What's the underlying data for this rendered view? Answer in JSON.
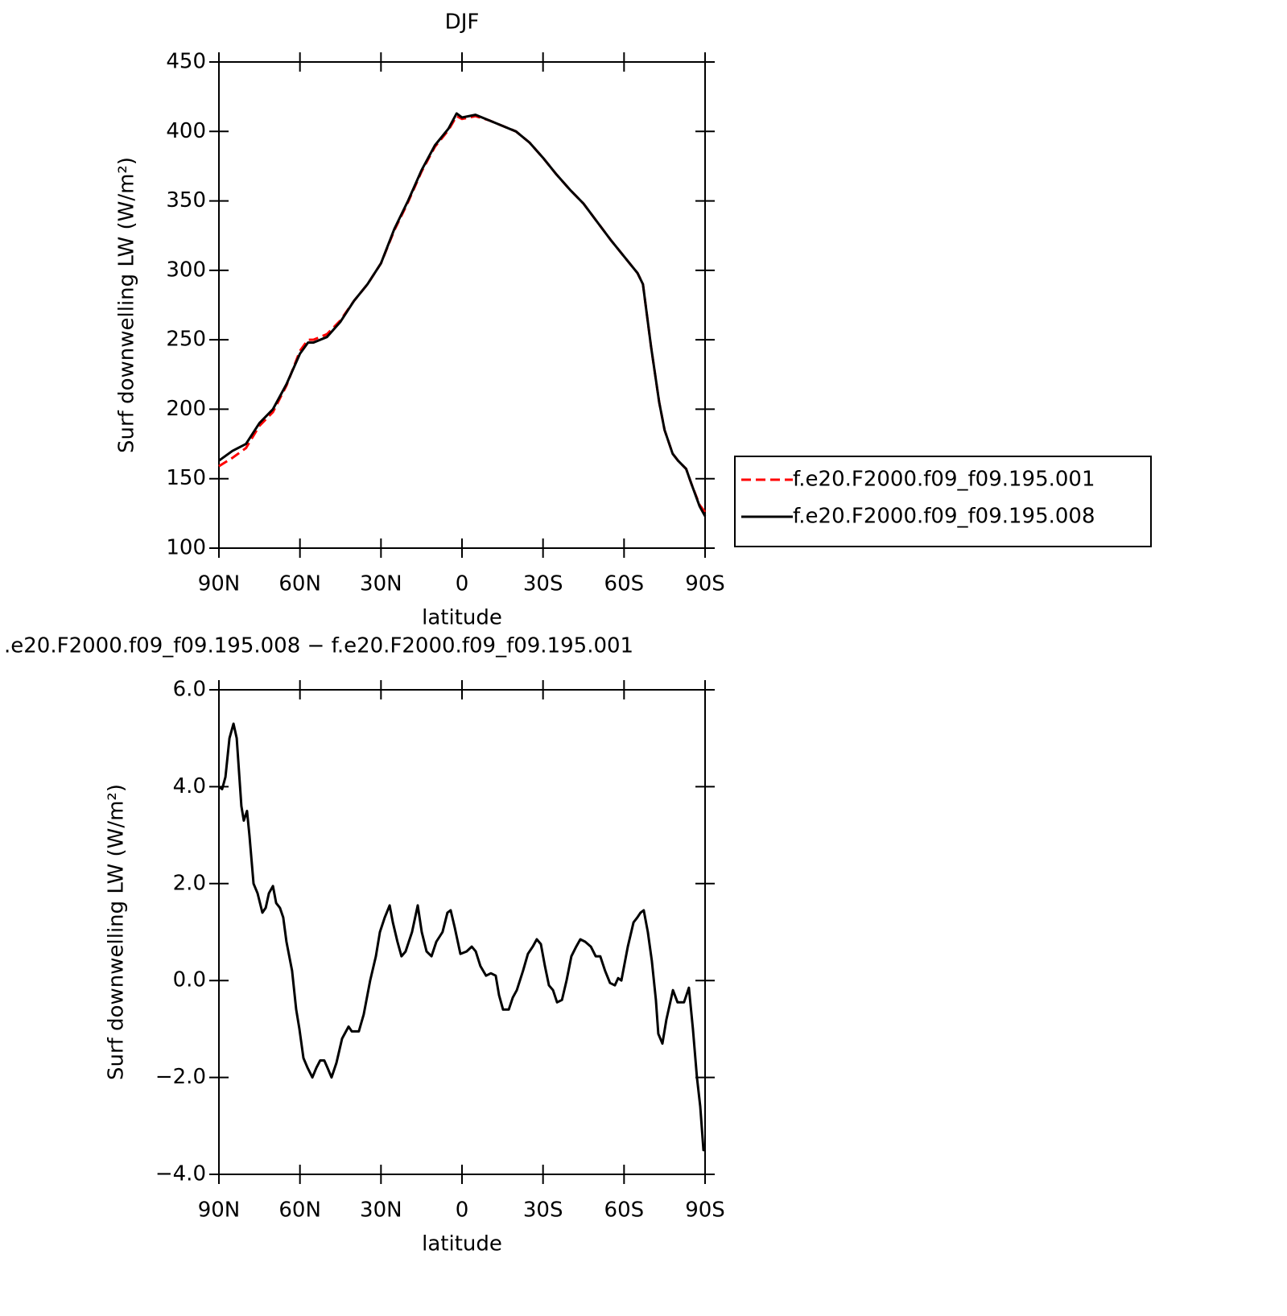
{
  "chart_data": [
    {
      "type": "line",
      "title": "DJF",
      "xlabel": "latitude",
      "ylabel": "Surf downwelling LW (W/m²)",
      "x": [
        90,
        85,
        80,
        75,
        70,
        65,
        60,
        57,
        55,
        50,
        45,
        40,
        35,
        30,
        25,
        20,
        15,
        10,
        5,
        2,
        0,
        -5,
        -10,
        -15,
        -20,
        -25,
        -30,
        -35,
        -40,
        -45,
        -50,
        -55,
        -60,
        -65,
        -67,
        -70,
        -73,
        -75,
        -78,
        -80,
        -83,
        -85,
        -88,
        -90
      ],
      "series": [
        {
          "name": "f.e20.F2000.f09_f09.195.001",
          "color": "#ff0000",
          "style": "dashed",
          "values": [
            159,
            165,
            172,
            188,
            198,
            217,
            242,
            250,
            250,
            254,
            264,
            278,
            290,
            305,
            329,
            349,
            371,
            389,
            401,
            411,
            409,
            411,
            408,
            404,
            400,
            392,
            381,
            369,
            358,
            348,
            335,
            322,
            310,
            298,
            290,
            245,
            205,
            185,
            168,
            163,
            157,
            146,
            131,
            126
          ]
        },
        {
          "name": "f.e20.F2000.f09_f09.195.008",
          "color": "#000000",
          "style": "solid",
          "values": [
            163,
            170,
            175,
            190,
            200,
            218,
            240,
            248,
            248,
            252,
            263,
            278,
            290,
            305,
            330,
            350,
            372,
            390,
            402,
            413,
            410,
            412,
            408,
            404,
            400,
            392,
            381,
            369,
            358,
            348,
            335,
            322,
            310,
            298,
            290,
            245,
            205,
            185,
            168,
            163,
            157,
            146,
            130,
            123
          ]
        }
      ],
      "xlim": [
        90,
        -90
      ],
      "xticks": [
        {
          "value": 90,
          "label": "90N"
        },
        {
          "value": 60,
          "label": "60N"
        },
        {
          "value": 30,
          "label": "30N"
        },
        0,
        {
          "value": -30,
          "label": "30S"
        },
        {
          "value": -60,
          "label": "60S"
        },
        {
          "value": -90,
          "label": "90S"
        }
      ],
      "ylim": [
        100,
        450
      ],
      "yticks": [
        100,
        150,
        200,
        250,
        300,
        350,
        400,
        450
      ],
      "legend": "right"
    },
    {
      "type": "line",
      "title": ".e20.F2000.f09_f09.195.008 − f.e20.F2000.f09_f09.195.001",
      "xlabel": "latitude",
      "ylabel": "Surf downwelling LW (W/m²)",
      "x": [
        90,
        88.8,
        87.6,
        86.1,
        84.6,
        83.4,
        81.7,
        80.8,
        79.6,
        78.7,
        77.2,
        75.7,
        73.9,
        72.7,
        71.5,
        70,
        68.8,
        67.4,
        66.2,
        65,
        62.9,
        61.4,
        60.2,
        58.7,
        57.2,
        55.4,
        53.9,
        52.5,
        51,
        49.8,
        48.3,
        46.5,
        44.4,
        42,
        40.8,
        38.2,
        36.4,
        34,
        31.9,
        30.4,
        28.6,
        26.8,
        25.6,
        23.9,
        22.4,
        20.9,
        18.5,
        16.4,
        14.9,
        13.1,
        11.3,
        9.5,
        7.2,
        5.4,
        4.2,
        2.7,
        0.6,
        -1.7,
        -3.6,
        -5.1,
        -6.8,
        -8.9,
        -10.7,
        -12.5,
        -13.7,
        -15.2,
        -17.3,
        -18.8,
        -20.3,
        -22.6,
        -24.4,
        -26.2,
        -27.7,
        -29.2,
        -30.7,
        -32.2,
        -33.7,
        -35.2,
        -37,
        -38.7,
        -40.5,
        -42.3,
        -43.8,
        -45.6,
        -47.7,
        -49.5,
        -51.2,
        -53,
        -54.8,
        -56.6,
        -57.8,
        -59,
        -61.4,
        -63.5,
        -64.9,
        -66.1,
        -67.3,
        -68.8,
        -70.3,
        -71.8,
        -72.7,
        -74.2,
        -75.7,
        -78.1,
        -79.8,
        -82.2,
        -84,
        -85.5,
        -87,
        -88.2,
        -89.4,
        -90
      ],
      "series": [
        {
          "name": null,
          "color": "#000000",
          "style": "solid",
          "values": [
            4.0,
            3.95,
            4.2,
            5.0,
            5.3,
            5.0,
            3.6,
            3.3,
            3.5,
            3.0,
            2.0,
            1.8,
            1.4,
            1.5,
            1.8,
            1.95,
            1.6,
            1.5,
            1.3,
            0.8,
            0.2,
            -0.6,
            -1.0,
            -1.6,
            -1.8,
            -2.0,
            -1.8,
            -1.65,
            -1.65,
            -1.8,
            -2.0,
            -1.7,
            -1.2,
            -0.95,
            -1.05,
            -1.05,
            -0.7,
            0.0,
            0.5,
            1.0,
            1.3,
            1.55,
            1.2,
            0.8,
            0.5,
            0.6,
            1.0,
            1.55,
            1.0,
            0.6,
            0.5,
            0.8,
            1.0,
            1.4,
            1.45,
            1.1,
            0.55,
            0.6,
            0.7,
            0.6,
            0.3,
            0.1,
            0.15,
            0.1,
            -0.3,
            -0.6,
            -0.6,
            -0.35,
            -0.2,
            0.2,
            0.55,
            0.7,
            0.85,
            0.75,
            0.3,
            -0.1,
            -0.2,
            -0.45,
            -0.4,
            0.0,
            0.5,
            0.7,
            0.85,
            0.8,
            0.7,
            0.5,
            0.5,
            0.2,
            -0.05,
            -0.1,
            0.05,
            0.0,
            0.7,
            1.2,
            1.3,
            1.4,
            1.45,
            1.0,
            0.4,
            -0.4,
            -1.1,
            -1.3,
            -0.8,
            -0.2,
            -0.45,
            -0.45,
            -0.15,
            -1.0,
            -2.0,
            -2.6,
            -3.5,
            -3.5
          ]
        }
      ],
      "xlim": [
        90,
        -90
      ],
      "xticks": [
        {
          "value": 90,
          "label": "90N"
        },
        {
          "value": 60,
          "label": "60N"
        },
        {
          "value": 30,
          "label": "30N"
        },
        0,
        {
          "value": -30,
          "label": "30S"
        },
        {
          "value": -60,
          "label": "60S"
        },
        {
          "value": -90,
          "label": "90S"
        }
      ],
      "ylim": [
        -4,
        6
      ],
      "yticks": [
        {
          "value": -4,
          "label": "−4.0"
        },
        {
          "value": -2,
          "label": "−2.0"
        },
        {
          "value": 0,
          "label": "0.0"
        },
        {
          "value": 2,
          "label": "2.0"
        },
        {
          "value": 4,
          "label": "4.0"
        },
        {
          "value": 6,
          "label": "6.0"
        }
      ]
    }
  ]
}
